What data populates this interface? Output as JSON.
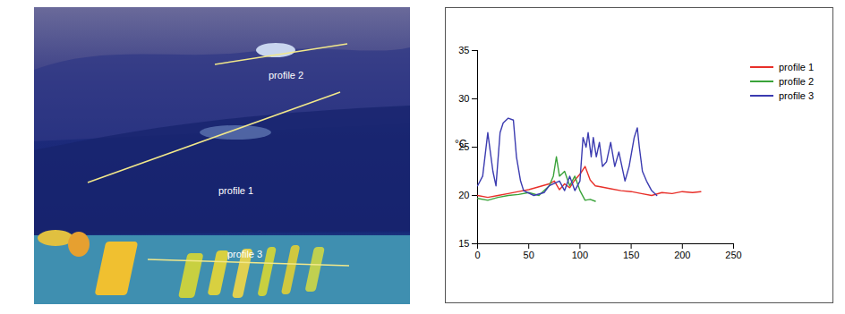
{
  "chart_data": {
    "type": "line",
    "ylabel": "°C",
    "xlim": [
      0,
      250
    ],
    "xticks": [
      0,
      50,
      100,
      150,
      200,
      250
    ],
    "ylim": [
      15,
      35
    ],
    "yticks": [
      15,
      20,
      25,
      30,
      35
    ],
    "grid": false,
    "legend": "right",
    "series": [
      {
        "name": "profile 1",
        "color": "#e8302a",
        "x": [
          0,
          10,
          20,
          30,
          40,
          50,
          60,
          70,
          75,
          80,
          85,
          90,
          95,
          100,
          105,
          110,
          115,
          120,
          130,
          140,
          150,
          160,
          170,
          180,
          190,
          200,
          210,
          218
        ],
        "values": [
          20,
          19.8,
          20,
          20.2,
          20.4,
          20.6,
          20.9,
          21.2,
          21.5,
          20.6,
          21.2,
          20.8,
          21.6,
          22.2,
          23,
          21.6,
          21,
          20.9,
          20.7,
          20.5,
          20.4,
          20.2,
          20,
          20.3,
          20.2,
          20.4,
          20.3,
          20.4
        ]
      },
      {
        "name": "profile 2",
        "color": "#3aa33a",
        "x": [
          0,
          10,
          20,
          30,
          40,
          50,
          60,
          65,
          70,
          74,
          77,
          80,
          85,
          90,
          95,
          100,
          105,
          110,
          115
        ],
        "values": [
          19.7,
          19.5,
          19.8,
          20,
          20.1,
          20.3,
          20,
          20.5,
          21,
          22,
          24,
          22,
          22.5,
          21,
          22,
          20.5,
          19.5,
          19.6,
          19.4
        ]
      },
      {
        "name": "profile 3",
        "color": "#3b3bb0",
        "x": [
          0,
          5,
          10,
          15,
          18,
          22,
          25,
          30,
          35,
          38,
          42,
          45,
          55,
          65,
          70,
          80,
          85,
          90,
          95,
          100,
          103,
          106,
          108,
          111,
          113,
          116,
          119,
          122,
          126,
          130,
          134,
          138,
          144,
          148,
          153,
          156,
          158,
          161,
          165,
          170,
          175
        ],
        "values": [
          21,
          22,
          26.5,
          22.5,
          21,
          26.5,
          27.5,
          28,
          27.8,
          24,
          21.5,
          20.5,
          20,
          20.3,
          21,
          21.5,
          20.5,
          22,
          20.5,
          21.5,
          26,
          25,
          26.5,
          24,
          26,
          24,
          25.5,
          23,
          23.5,
          25.5,
          23,
          24.5,
          21.5,
          23,
          26,
          27,
          25,
          22.5,
          21.5,
          20.5,
          20
        ]
      }
    ]
  },
  "thermal_image": {
    "profile_labels": [
      "profile 1",
      "profile 2",
      "profile 3"
    ]
  }
}
